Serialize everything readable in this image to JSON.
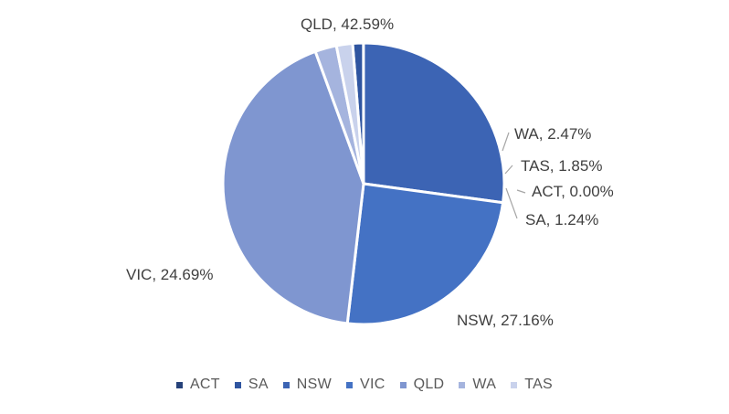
{
  "chart_data": {
    "type": "pie",
    "title": "",
    "categories": [
      "ACT",
      "SA",
      "NSW",
      "VIC",
      "QLD",
      "WA",
      "TAS"
    ],
    "values": [
      0.0,
      1.24,
      27.16,
      24.69,
      42.59,
      2.47,
      1.85
    ],
    "data_labels": [
      "ACT, 0.00%",
      "SA, 1.24%",
      "NSW, 27.16%",
      "VIC, 24.69%",
      "QLD, 42.59%",
      "WA, 2.47%",
      "TAS, 1.85%"
    ],
    "pie_order": [
      "ACT",
      "SA",
      "NSW",
      "VIC",
      "QLD",
      "WA",
      "TAS"
    ],
    "colors": {
      "ACT": "#26427a",
      "SA": "#2f55a0",
      "NSW": "#3c64b4",
      "VIC": "#4472c4",
      "QLD": "#7f96d0",
      "WA": "#a5b4de",
      "TAS": "#c9d2ec"
    },
    "legend": {
      "position": "bottom",
      "items": [
        "ACT",
        "SA",
        "NSW",
        "VIC",
        "QLD",
        "WA",
        "TAS"
      ]
    }
  }
}
